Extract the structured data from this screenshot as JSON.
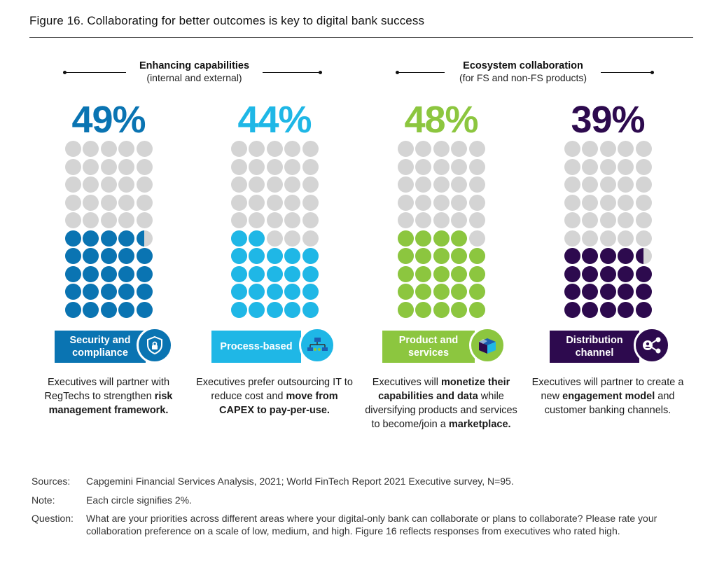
{
  "title": "Figure 16. Collaborating for better outcomes is key to digital bank success",
  "groups": [
    {
      "title": "Enhancing capabilities",
      "subtitle": "(internal and external)"
    },
    {
      "title": "Ecosystem collaboration",
      "subtitle": "(for FS and non-FS products)"
    }
  ],
  "chart_data": {
    "type": "waffle",
    "unit_note": "Each circle signifies 2%.",
    "grid": {
      "rows": 10,
      "cols": 5
    },
    "categories": [
      "Security and compliance",
      "Process-based",
      "Product and services",
      "Distribution channel"
    ],
    "values": [
      49,
      44,
      48,
      39
    ],
    "series": [
      {
        "value_label": "49%",
        "label_line1": "Security and",
        "label_line2": "compliance",
        "color": "#0a74b2",
        "icon": "shield-lock-icon",
        "group": "Enhancing capabilities",
        "desc": [
          {
            "t": "Executives will partner with RegTechs to strengthen "
          },
          {
            "t": "risk management framework.",
            "b": true
          }
        ]
      },
      {
        "value_label": "44%",
        "label_line1": "Process-based",
        "label_line2": "",
        "color": "#1fb7e6",
        "icon": "process-flow-icon",
        "group": "Enhancing capabilities",
        "desc": [
          {
            "t": "Executives prefer outsourcing IT to reduce cost and "
          },
          {
            "t": "move from CAPEX to pay-per-use.",
            "b": true
          }
        ]
      },
      {
        "value_label": "48%",
        "label_line1": "Product and",
        "label_line2": "services",
        "color": "#8cc63f",
        "icon": "box-icon",
        "group": "Ecosystem collaboration",
        "desc": [
          {
            "t": "Executives will "
          },
          {
            "t": "monetize their capabilities and data",
            "b": true
          },
          {
            "t": " while diversifying products and services to become/join a "
          },
          {
            "t": "marketplace.",
            "b": true
          }
        ]
      },
      {
        "value_label": "39%",
        "label_line1": "Distribution",
        "label_line2": "channel",
        "color": "#2d0a4e",
        "icon": "share-network-icon",
        "group": "Ecosystem collaboration",
        "desc": [
          {
            "t": "Executives will partner to create a new "
          },
          {
            "t": "engagement model",
            "b": true
          },
          {
            "t": " and customer banking channels."
          }
        ]
      }
    ],
    "empty_color": "#d4d4d4"
  },
  "notes": {
    "sources_key": "Sources:",
    "sources": "Capgemini Financial Services Analysis, 2021; World FinTech Report 2021 Executive survey, N=95.",
    "note_key": "Note:",
    "note": "Each circle signifies 2%.",
    "question_key": "Question:",
    "question": "What are your priorities across different areas where your digital-only bank can collaborate or plans to collaborate? Please rate your collaboration preference on a scale of low, medium, and high. Figure 16 reflects responses from executives who rated high."
  }
}
